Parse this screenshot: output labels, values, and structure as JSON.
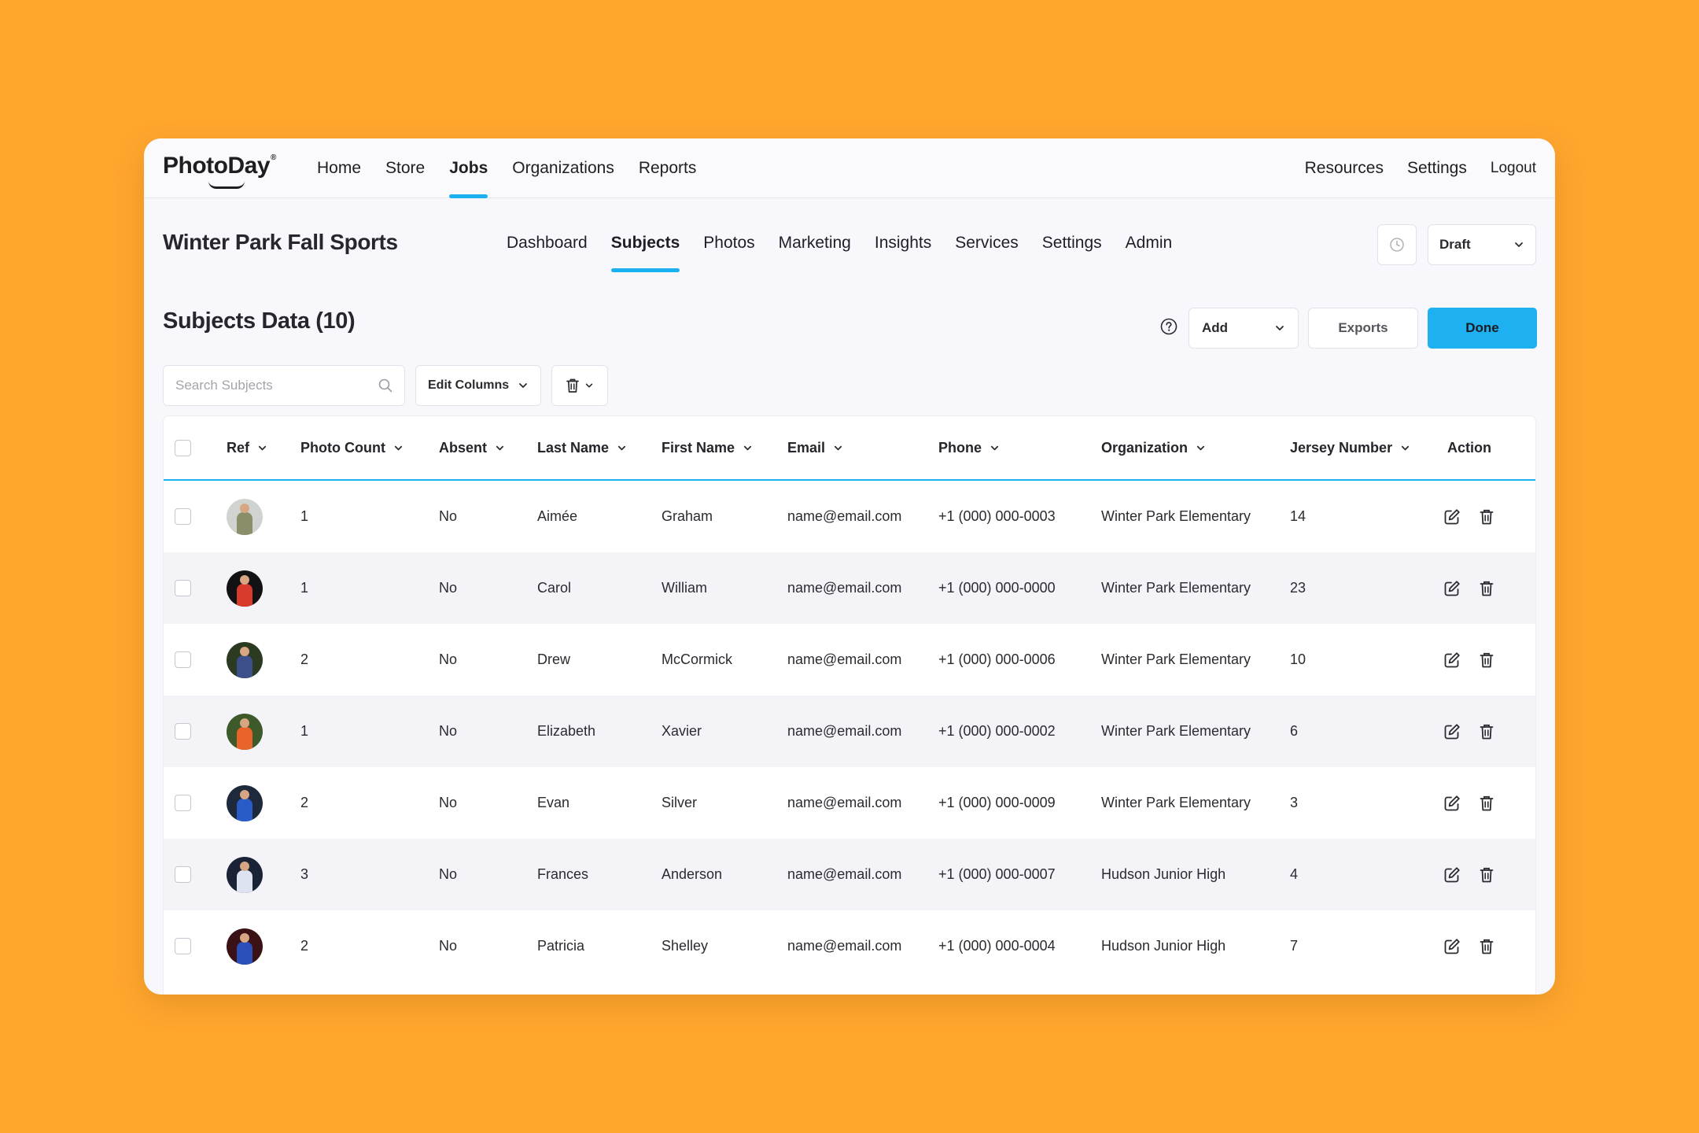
{
  "brand": {
    "name": "PhotoDay",
    "mark": "®"
  },
  "topnav": {
    "items": [
      "Home",
      "Store",
      "Jobs",
      "Organizations",
      "Reports"
    ],
    "active": "Jobs",
    "right_items": [
      "Resources",
      "Settings",
      "Logout"
    ]
  },
  "job": {
    "title": "Winter Park Fall Sports",
    "tabs": [
      "Dashboard",
      "Subjects",
      "Photos",
      "Marketing",
      "Insights",
      "Services",
      "Settings",
      "Admin"
    ],
    "active_tab": "Subjects",
    "status": "Draft"
  },
  "section": {
    "title": "Subjects Data (10)",
    "add_label": "Add",
    "exports_label": "Exports",
    "done_label": "Done"
  },
  "toolbar": {
    "search_placeholder": "Search Subjects",
    "edit_columns_label": "Edit Columns"
  },
  "table": {
    "headers": {
      "ref": "Ref",
      "photo_count": "Photo Count",
      "absent": "Absent",
      "last_name": "Last Name",
      "first_name": "First Name",
      "email": "Email",
      "phone": "Phone",
      "organization": "Organization",
      "jersey_number": "Jersey Number",
      "action": "Action"
    },
    "rows": [
      {
        "photo_count": "1",
        "absent": "No",
        "last_name": "Aimée",
        "first_name": "Graham",
        "email": "name@email.com",
        "phone": "+1 (000) 000-0003",
        "organization": "Winter Park Elementary",
        "jersey": "14",
        "jersey_color": "#8a8f6a",
        "bg": "#cfd4d0"
      },
      {
        "photo_count": "1",
        "absent": "No",
        "last_name": "Carol",
        "first_name": "William",
        "email": "name@email.com",
        "phone": "+1 (000) 000-0000",
        "organization": "Winter Park Elementary",
        "jersey": "23",
        "jersey_color": "#d83a2c",
        "bg": "#121214"
      },
      {
        "photo_count": "2",
        "absent": "No",
        "last_name": "Drew",
        "first_name": "McCormick",
        "email": "name@email.com",
        "phone": "+1 (000) 000-0006",
        "organization": "Winter Park Elementary",
        "jersey": "10",
        "jersey_color": "#3c4f8a",
        "bg": "#2c3a22"
      },
      {
        "photo_count": "1",
        "absent": "No",
        "last_name": "Elizabeth",
        "first_name": "Xavier",
        "email": "name@email.com",
        "phone": "+1 (000) 000-0002",
        "organization": "Winter Park Elementary",
        "jersey": "6",
        "jersey_color": "#e8642a",
        "bg": "#3e5a2a"
      },
      {
        "photo_count": "2",
        "absent": "No",
        "last_name": "Evan",
        "first_name": "Silver",
        "email": "name@email.com",
        "phone": "+1 (000) 000-0009",
        "organization": "Winter Park Elementary",
        "jersey": "3",
        "jersey_color": "#2a5cc8",
        "bg": "#1e2a3c"
      },
      {
        "photo_count": "3",
        "absent": "No",
        "last_name": "Frances",
        "first_name": "Anderson",
        "email": "name@email.com",
        "phone": "+1 (000) 000-0007",
        "organization": "Hudson Junior High",
        "jersey": "4",
        "jersey_color": "#dde3f0",
        "bg": "#1a2236"
      },
      {
        "photo_count": "2",
        "absent": "No",
        "last_name": "Patricia",
        "first_name": "Shelley",
        "email": "name@email.com",
        "phone": "+1 (000) 000-0004",
        "organization": "Hudson Junior High",
        "jersey": "7",
        "jersey_color": "#2b4fb8",
        "bg": "#3a1216"
      }
    ]
  }
}
